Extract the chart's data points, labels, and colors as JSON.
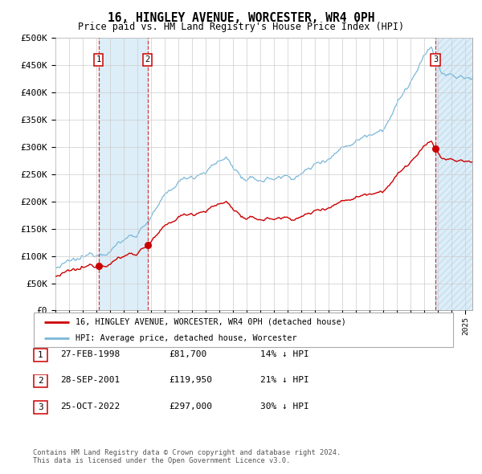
{
  "title": "16, HINGLEY AVENUE, WORCESTER, WR4 0PH",
  "subtitle": "Price paid vs. HM Land Registry's House Price Index (HPI)",
  "ylabel_ticks": [
    "£0",
    "£50K",
    "£100K",
    "£150K",
    "£200K",
    "£250K",
    "£300K",
    "£350K",
    "£400K",
    "£450K",
    "£500K"
  ],
  "ytick_values": [
    0,
    50000,
    100000,
    150000,
    200000,
    250000,
    300000,
    350000,
    400000,
    450000,
    500000
  ],
  "ylim": [
    0,
    500000
  ],
  "xlim_start": 1995.0,
  "xlim_end": 2025.5,
  "sale_dates": [
    1998.15,
    2001.74,
    2022.81
  ],
  "sale_prices": [
    81700,
    119950,
    297000
  ],
  "sale_labels": [
    "1",
    "2",
    "3"
  ],
  "hpi_color": "#7ab8d9",
  "sale_color": "#cc0000",
  "vline_color": "#cc0000",
  "shade_color": "#ddeef8",
  "background_color": "#ffffff",
  "grid_color": "#cccccc",
  "legend_entry1": "16, HINGLEY AVENUE, WORCESTER, WR4 0PH (detached house)",
  "legend_entry2": "HPI: Average price, detached house, Worcester",
  "table_rows": [
    [
      "1",
      "27-FEB-1998",
      "£81,700",
      "14% ↓ HPI"
    ],
    [
      "2",
      "28-SEP-2001",
      "£119,950",
      "21% ↓ HPI"
    ],
    [
      "3",
      "25-OCT-2022",
      "£297,000",
      "30% ↓ HPI"
    ]
  ],
  "footnote1": "Contains HM Land Registry data © Crown copyright and database right 2024.",
  "footnote2": "This data is licensed under the Open Government Licence v3.0."
}
